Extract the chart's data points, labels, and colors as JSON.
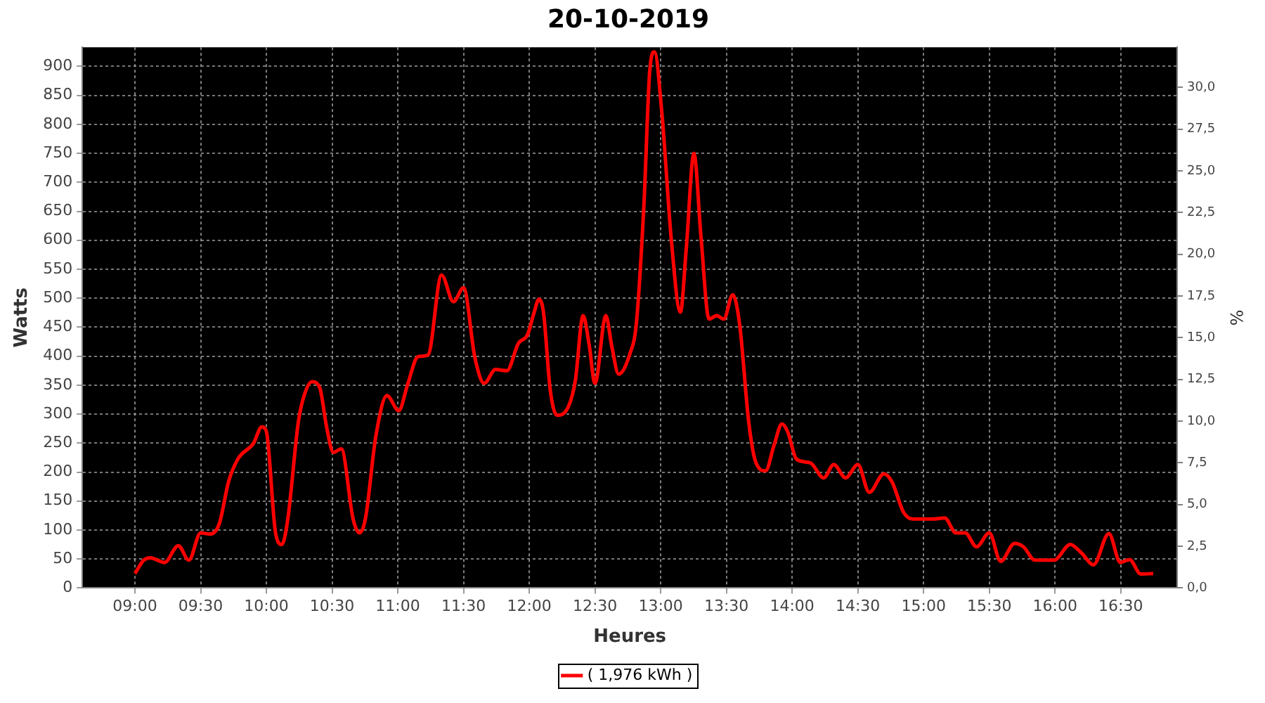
{
  "chart_data": {
    "type": "line",
    "title": "20-10-2019",
    "xlabel": "Heures",
    "ylabel": "Watts",
    "y2label": "%",
    "xlim": [
      8.6,
      16.93
    ],
    "xticks": [
      {
        "value": 9,
        "label": "09:00"
      },
      {
        "value": 9.5,
        "label": "09:30"
      },
      {
        "value": 10,
        "label": "10:00"
      },
      {
        "value": 10.5,
        "label": "10:30"
      },
      {
        "value": 11,
        "label": "11:00"
      },
      {
        "value": 11.5,
        "label": "11:30"
      },
      {
        "value": 12,
        "label": "12:00"
      },
      {
        "value": 12.5,
        "label": "12:30"
      },
      {
        "value": 13,
        "label": "13:00"
      },
      {
        "value": 13.5,
        "label": "13:30"
      },
      {
        "value": 14,
        "label": "14:00"
      },
      {
        "value": 14.5,
        "label": "14:30"
      },
      {
        "value": 15,
        "label": "15:00"
      },
      {
        "value": 15.5,
        "label": "15:30"
      },
      {
        "value": 16,
        "label": "16:00"
      },
      {
        "value": 16.5,
        "label": "16:30"
      }
    ],
    "ylim": [
      0,
      933
    ],
    "yticks": [
      0,
      50,
      100,
      150,
      200,
      250,
      300,
      350,
      400,
      450,
      500,
      550,
      600,
      650,
      700,
      750,
      800,
      850,
      900
    ],
    "y2lim": [
      0,
      32.4
    ],
    "y2ticks": [
      {
        "value": 0,
        "label": "0,0"
      },
      {
        "value": 2.5,
        "label": "2,5"
      },
      {
        "value": 5,
        "label": "5,0"
      },
      {
        "value": 7.5,
        "label": "7,5"
      },
      {
        "value": 10,
        "label": "10,0"
      },
      {
        "value": 12.5,
        "label": "12,5"
      },
      {
        "value": 15,
        "label": "15,0"
      },
      {
        "value": 17.5,
        "label": "17,5"
      },
      {
        "value": 20,
        "label": "20,0"
      },
      {
        "value": 22.5,
        "label": "22,5"
      },
      {
        "value": 25,
        "label": "25,0"
      },
      {
        "value": 27.5,
        "label": "27,5"
      },
      {
        "value": 30,
        "label": "30,0"
      }
    ],
    "grid": true,
    "legend": "bottom",
    "marker": "none",
    "line_style": "solid",
    "series": [
      {
        "name": "( 1,976 kWh )",
        "color": "#ff0000",
        "x": [
          9,
          9.067,
          9.117,
          9.225,
          9.33,
          9.41,
          9.5,
          9.573,
          9.642,
          9.712,
          9.782,
          9.903,
          9.965,
          10,
          10.07,
          10.118,
          10.163,
          10.243,
          10.283,
          10.347,
          10.407,
          10.458,
          10.51,
          10.57,
          10.66,
          10.708,
          10.753,
          10.833,
          10.917,
          11.007,
          11.077,
          11.153,
          11.23,
          11.333,
          11.423,
          11.5,
          11.587,
          11.657,
          11.743,
          11.83,
          11.917,
          11.987,
          12.038,
          12.073,
          12.108,
          12.16,
          12.212,
          12.298,
          12.35,
          12.41,
          12.455,
          12.5,
          12.583,
          12.628,
          12.68,
          12.767,
          12.813,
          12.872,
          12.917,
          12.952,
          13.01,
          13.08,
          13.15,
          13.195,
          13.253,
          13.305,
          13.368,
          13.427,
          13.48,
          13.548,
          13.6,
          13.67,
          13.722,
          13.798,
          13.862,
          13.923,
          13.965,
          14.035,
          14.138,
          14.24,
          14.317,
          14.407,
          14.5,
          14.587,
          14.698,
          14.76,
          14.847,
          14.917,
          15.073,
          15.16,
          15.247,
          15.317,
          15.403,
          15.5,
          15.587,
          15.692,
          15.76,
          15.847,
          15.993,
          16.117,
          16.203,
          16.292,
          16.41,
          16.497,
          16.567,
          16.653,
          16.747
        ],
        "values": [
          25,
          48,
          52,
          44,
          73,
          48,
          95,
          93,
          111,
          183,
          222,
          250,
          278,
          270,
          95,
          75,
          119,
          286,
          329,
          356,
          345,
          278,
          234,
          240,
          119,
          95,
          119,
          262,
          332,
          306,
          353,
          399,
          402,
          540,
          494,
          518,
          397,
          353,
          377,
          375,
          422,
          437,
          476,
          498,
          476,
          341,
          298,
          313,
          357,
          470,
          421,
          353,
          470,
          417,
          369,
          405,
          452,
          659,
          893,
          925,
          817,
          603,
          476,
          587,
          750,
          611,
          464,
          470,
          464,
          506,
          456,
          286,
          218,
          202,
          246,
          283,
          270,
          222,
          216,
          190,
          213,
          190,
          213,
          165,
          197,
          183,
          131,
          119,
          119,
          121,
          95,
          95,
          71,
          95,
          46,
          77,
          71,
          48,
          48,
          75,
          60,
          40,
          94,
          44,
          49,
          24,
          25
        ]
      }
    ]
  }
}
